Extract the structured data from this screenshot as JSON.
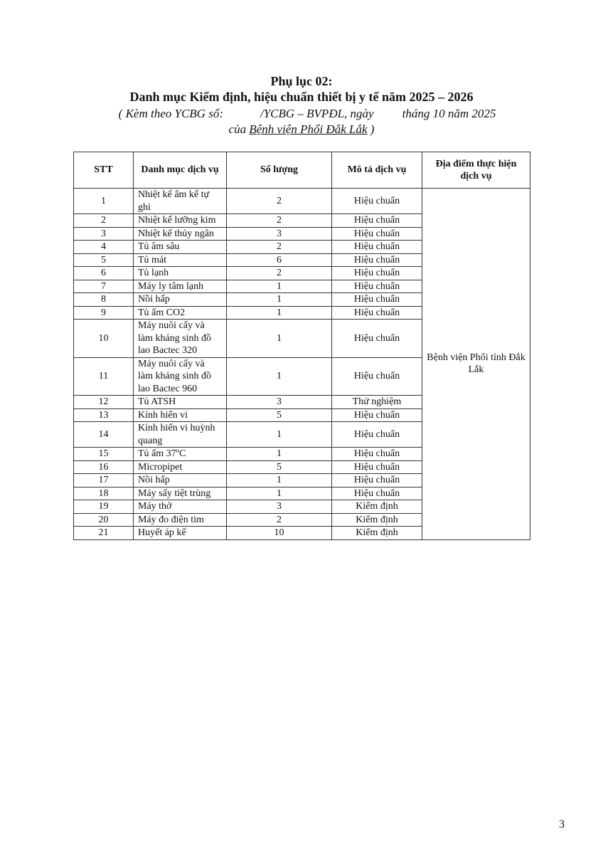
{
  "header": {
    "title": "Phụ lục 02:",
    "subtitle": "Danh mục Kiểm định, hiệu chuẩn thiết bị y tế năm 2025 – 2026",
    "ref_a": "( Kèm theo YCBG số:",
    "ref_b": "/YCBG – BVPĐL, ngày",
    "ref_c": "tháng 10 năm 2025",
    "of_a": "của ",
    "of_b": "Bệnh viện Phổi Đắk Lắk",
    "of_c": " )"
  },
  "table": {
    "columns": [
      "STT",
      "Danh mục dịch vụ",
      "Số lượng",
      "Mô tả dịch vụ",
      "Địa điểm thực hiện dịch vụ"
    ],
    "location": "Bệnh viện Phổi tỉnh Đắk Lắk",
    "rows": [
      {
        "stt": "1",
        "name": "Nhiệt kế ẩm kế tự ghi",
        "qty": "2",
        "desc": "Hiệu chuẩn"
      },
      {
        "stt": "2",
        "name": "Nhiệt kế lưỡng kim",
        "qty": "2",
        "desc": "Hiệu chuẩn"
      },
      {
        "stt": "3",
        "name": "Nhiệt kế thủy ngân",
        "qty": "3",
        "desc": "Hiệu chuẩn"
      },
      {
        "stt": "4",
        "name": "Tủ âm sâu",
        "qty": "2",
        "desc": "Hiệu chuẩn"
      },
      {
        "stt": "5",
        "name": "Tủ mát",
        "qty": "6",
        "desc": "Hiệu chuẩn"
      },
      {
        "stt": "6",
        "name": "Tủ lạnh",
        "qty": "2",
        "desc": "Hiệu chuẩn"
      },
      {
        "stt": "7",
        "name": "Máy ly tâm lạnh",
        "qty": "1",
        "desc": "Hiệu chuẩn"
      },
      {
        "stt": "8",
        "name": "Nồi hấp",
        "qty": "1",
        "desc": "Hiệu chuẩn"
      },
      {
        "stt": "9",
        "name": "Tủ ấm CO2",
        "qty": "1",
        "desc": "Hiệu chuẩn"
      },
      {
        "stt": "10",
        "name": "Máy nuôi cấy và làm kháng sinh đồ lao Bactec 320",
        "qty": "1",
        "desc": "Hiệu chuẩn"
      },
      {
        "stt": "11",
        "name": "Máy nuôi cấy và làm kháng sinh đồ lao Bactec 960",
        "qty": "1",
        "desc": "Hiệu chuẩn"
      },
      {
        "stt": "12",
        "name": "Tủ ATSH",
        "qty": "3",
        "desc": "Thử nghiệm"
      },
      {
        "stt": "13",
        "name": "Kính hiển vi",
        "qty": "5",
        "desc": "Hiệu chuẩn"
      },
      {
        "stt": "14",
        "name": "Kính hiển vi huỳnh quang",
        "qty": "1",
        "desc": "Hiệu chuẩn"
      },
      {
        "stt": "15",
        "name": "Tủ ấm 37ºC",
        "qty": "1",
        "desc": "Hiệu chuẩn"
      },
      {
        "stt": "16",
        "name": "Micropipet",
        "qty": "5",
        "desc": "Hiệu chuẩn"
      },
      {
        "stt": "17",
        "name": "Nồi hấp",
        "qty": "1",
        "desc": "Hiệu chuẩn"
      },
      {
        "stt": "18",
        "name": "Máy sấy tiệt trùng",
        "qty": "1",
        "desc": "Hiệu chuẩn"
      },
      {
        "stt": "19",
        "name": "Máy thở",
        "qty": "3",
        "desc": "Kiểm định"
      },
      {
        "stt": "20",
        "name": "Máy đo điện tim",
        "qty": "2",
        "desc": "Kiểm định"
      },
      {
        "stt": "21",
        "name": "Huyết áp kế",
        "qty": "10",
        "desc": "Kiểm định"
      }
    ]
  },
  "page_number": "3"
}
